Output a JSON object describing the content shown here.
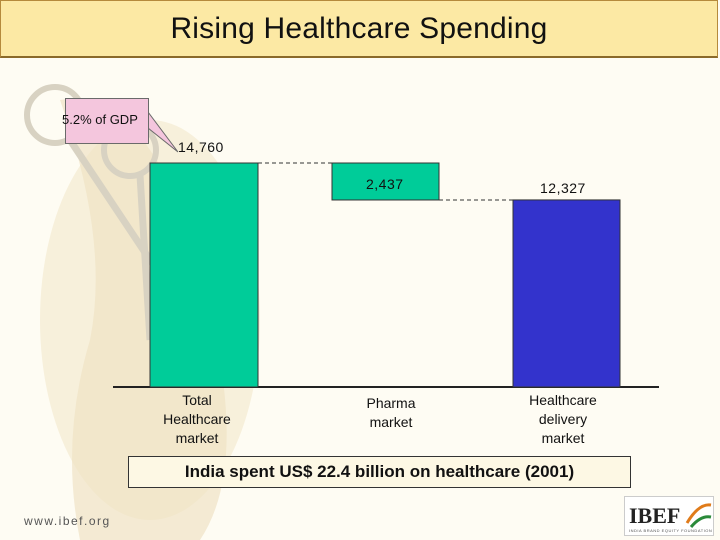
{
  "title": "Rising Healthcare Spending",
  "callout": {
    "text": "5.2%  of GDP"
  },
  "chart_data": {
    "type": "bar",
    "subtype": "waterfall",
    "categories": [
      "Total Healthcare market",
      "Pharma market",
      "Healthcare delivery market"
    ],
    "values": [
      14760,
      2437,
      12327
    ],
    "value_labels": [
      "14,760",
      "2,437",
      "12,327"
    ],
    "colors": [
      "#00cc99",
      "#00cc99",
      "#3333cc"
    ],
    "ylim": [
      0,
      14760
    ],
    "title": "",
    "xlabel": "",
    "ylabel": ""
  },
  "footer_text": "India spent US$ 22.4 billion on healthcare (2001)",
  "website": "www.ibef.org",
  "logo": {
    "text": "IBEF",
    "tagline": "INDIA BRAND EQUITY FOUNDATION"
  }
}
